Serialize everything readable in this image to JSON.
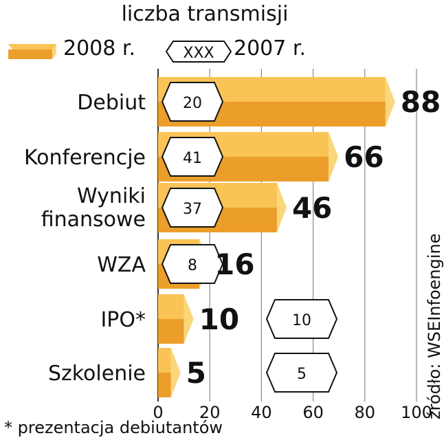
{
  "chart_data": {
    "type": "bar",
    "title": "liczba transmisji",
    "categories": [
      "Debiut",
      "Konferencje",
      "Wyniki\nfinansowe",
      "WZA",
      "IPO*",
      "Szkolenie"
    ],
    "series": [
      {
        "name": "2008 r.",
        "values": [
          88,
          66,
          46,
          16,
          10,
          5
        ]
      },
      {
        "name": "2007 r.",
        "values": [
          20,
          41,
          37,
          8,
          10,
          5
        ]
      }
    ],
    "legend_sample": "XXX",
    "xlim": [
      0,
      100
    ],
    "xticks": [
      0,
      20,
      40,
      60,
      80,
      100
    ],
    "grid": true,
    "legend_position": "top",
    "footnote": "* prezentacja debiutantów",
    "source": "źródło: WSEInfoengine",
    "colors": {
      "bar_top": "#F9C455",
      "bar_front": "#EC9E2B",
      "bar_cap": "#FBD77C",
      "grid": "#888888"
    }
  }
}
